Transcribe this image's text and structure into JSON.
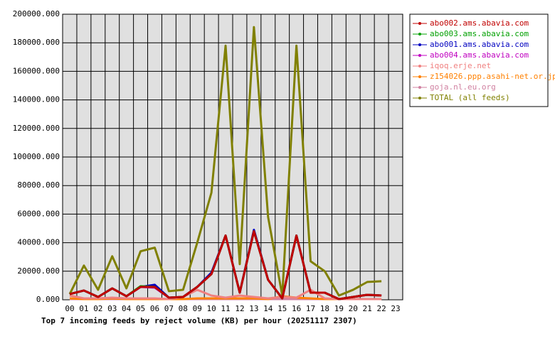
{
  "chart_data": {
    "type": "line",
    "title": "Top 7 incoming feeds by reject volume (KB) per hour (20251117 2307)",
    "categories": [
      "00",
      "01",
      "02",
      "03",
      "04",
      "05",
      "06",
      "07",
      "08",
      "09",
      "10",
      "11",
      "12",
      "13",
      "14",
      "15",
      "16",
      "17",
      "18",
      "19",
      "20",
      "21",
      "22",
      "23"
    ],
    "ylim": [
      0,
      200000
    ],
    "yticks": [
      {
        "value": 0,
        "label": "0.000"
      },
      {
        "value": 20000,
        "label": "20000.000"
      },
      {
        "value": 40000,
        "label": "40000.000"
      },
      {
        "value": 60000,
        "label": "60000.000"
      },
      {
        "value": 80000,
        "label": "80000.000"
      },
      {
        "value": 100000,
        "label": "100000.000"
      },
      {
        "value": 120000,
        "label": "120000.000"
      },
      {
        "value": 140000,
        "label": "140000.000"
      },
      {
        "value": 160000,
        "label": "160000.000"
      },
      {
        "value": 180000,
        "label": "180000.000"
      },
      {
        "value": 200000,
        "label": "200000.000"
      }
    ],
    "grid": true,
    "legend": "right",
    "series": [
      {
        "name": "abo002.ams.abavia.com",
        "color": "#c00000",
        "values": [
          4000,
          6500,
          2000,
          8000,
          2500,
          9000,
          9000,
          1500,
          2000,
          9000,
          18000,
          45000,
          5000,
          48000,
          14000,
          1000,
          45000,
          5000,
          5000,
          500,
          2000,
          3500,
          3000,
          null
        ]
      },
      {
        "name": "abo003.ams.abavia.com",
        "color": "#00a000",
        "values": [
          4000,
          6500,
          2000,
          8000,
          2500,
          9500,
          9000,
          1500,
          2000,
          9000,
          18000,
          45000,
          5000,
          48000,
          14000,
          1000,
          45000,
          5000,
          5000,
          500,
          2000,
          3500,
          3000,
          null
        ]
      },
      {
        "name": "abo001.ams.abavia.com",
        "color": "#0000c0",
        "values": [
          4000,
          6500,
          2000,
          8000,
          2500,
          9000,
          10500,
          1500,
          2000,
          9000,
          19000,
          45000,
          5000,
          49000,
          14000,
          1000,
          45000,
          5000,
          5000,
          500,
          2000,
          3500,
          3000,
          null
        ]
      },
      {
        "name": "abo004.ams.abavia.com",
        "color": "#c000c0",
        "values": [
          4000,
          6500,
          2000,
          8000,
          2500,
          9000,
          8500,
          1500,
          2000,
          9000,
          18000,
          45000,
          5000,
          48000,
          14000,
          1000,
          45000,
          5000,
          5000,
          500,
          2000,
          3500,
          3000,
          null
        ]
      },
      {
        "name": "iqoq.erje.net",
        "color": "#f08080",
        "values": [
          3000,
          1000,
          1000,
          1500,
          1000,
          1000,
          1000,
          500,
          2000,
          7000,
          3000,
          1500,
          3000,
          2000,
          1000,
          2000,
          1500,
          7000,
          1000,
          500,
          500,
          500,
          500,
          null
        ]
      },
      {
        "name": "z154026.ppp.asahi-net.or.jp",
        "color": "#ff8000",
        "values": [
          1000,
          500,
          500,
          1000,
          500,
          500,
          500,
          500,
          500,
          1000,
          1000,
          1000,
          1000,
          1000,
          500,
          2500,
          1500,
          1000,
          500,
          500,
          500,
          500,
          500,
          null
        ]
      },
      {
        "name": "goja.nl.eu.org",
        "color": "#d080a0",
        "values": [
          500,
          500,
          500,
          500,
          500,
          500,
          500,
          500,
          500,
          500,
          500,
          500,
          500,
          500,
          500,
          500,
          500,
          500,
          500,
          500,
          500,
          500,
          500,
          null
        ]
      },
      {
        "name": "TOTAL (all feeds)",
        "color": "#808000",
        "values": [
          4000,
          24000,
          7000,
          30500,
          8000,
          34000,
          36500,
          6000,
          7000,
          40000,
          75000,
          178000,
          25000,
          191000,
          58000,
          3000,
          178000,
          27000,
          20000,
          3000,
          7000,
          12500,
          13000,
          null
        ]
      }
    ]
  }
}
